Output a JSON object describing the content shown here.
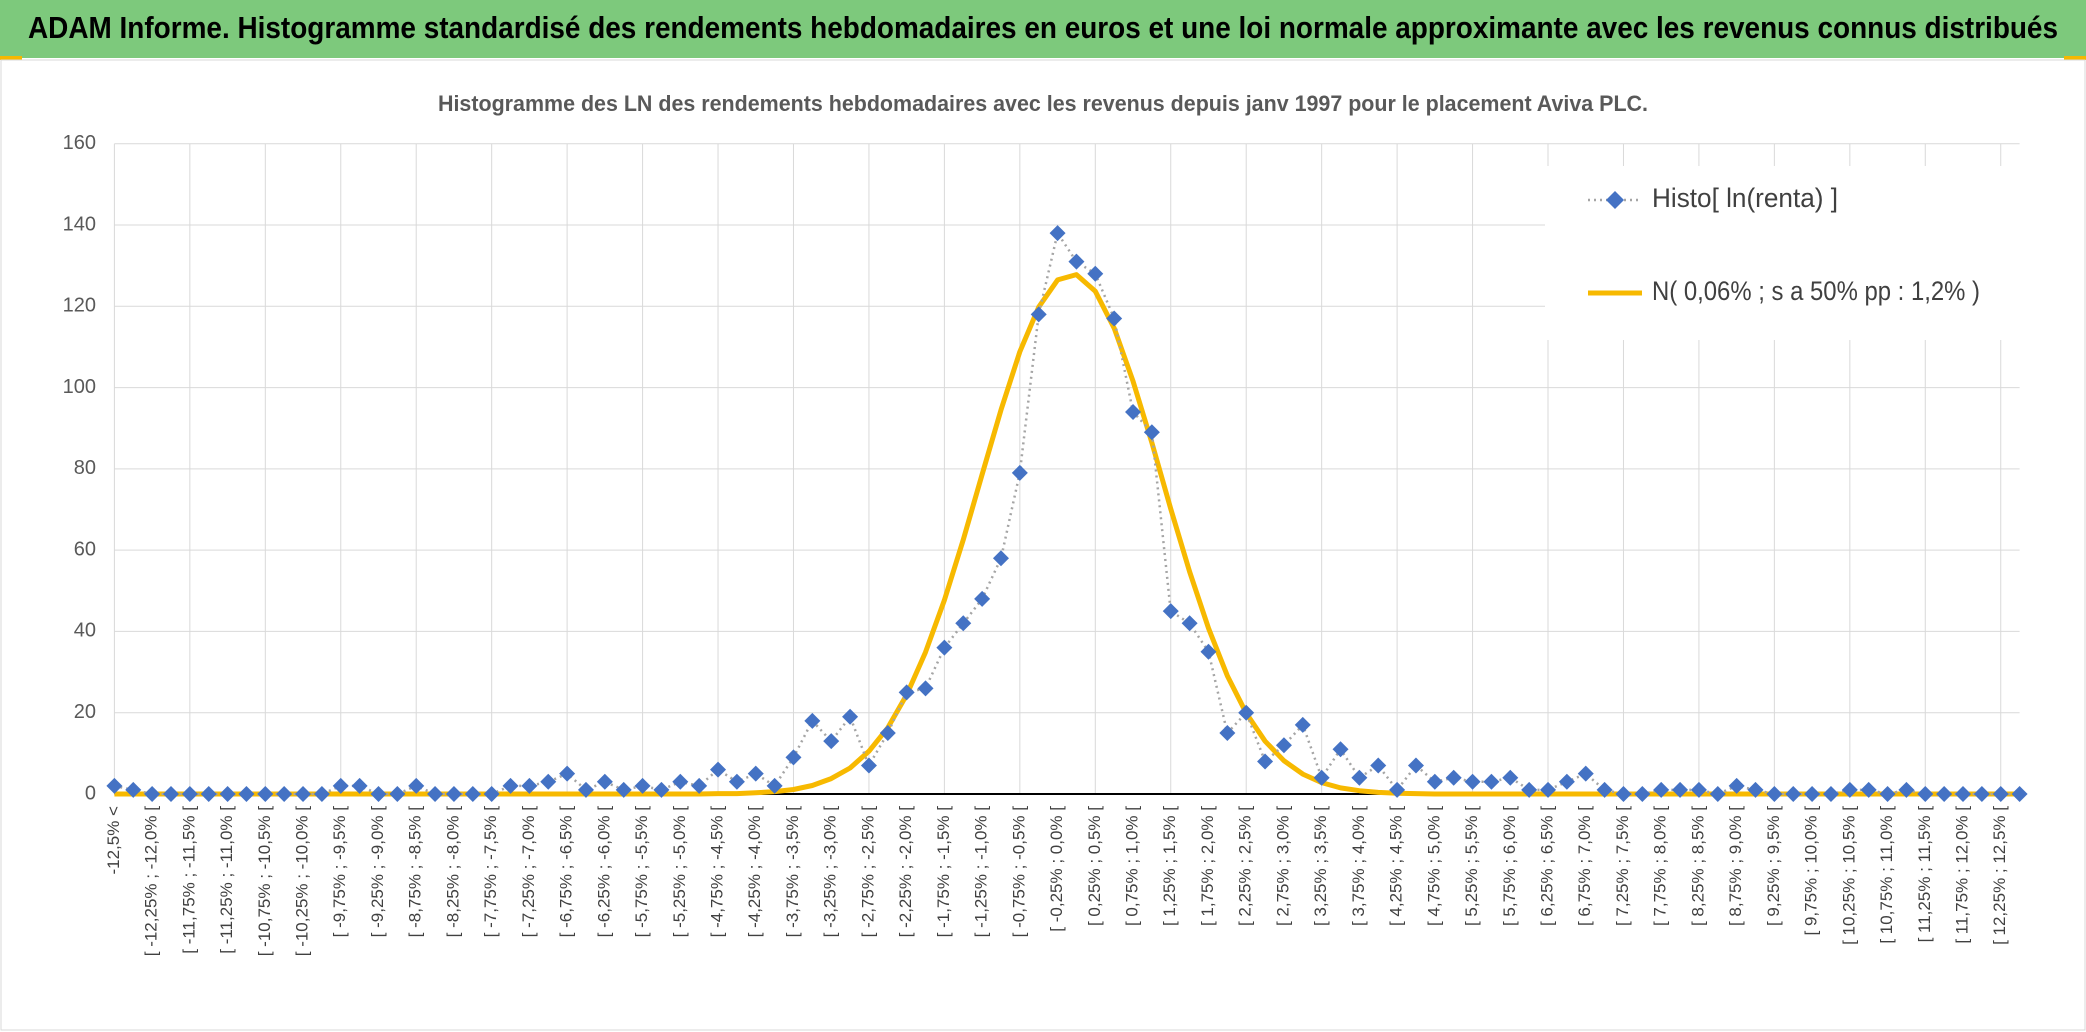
{
  "header": {
    "title": "ADAM Informe. Histogramme standardisé des rendements hebdomadaires en euros et une loi normale approximante avec les revenus connus distribués"
  },
  "chart_data": {
    "type": "line",
    "title": "Histogramme des LN des rendements hebdomadaires avec les revenus depuis janv 1997 pour le placement Aviva PLC.",
    "categories": [
      "-12,5% <",
      null,
      "[ -12,25% ; -12,0% [",
      null,
      "[ -11,75% ; -11,5% [",
      null,
      "[ -11,25% ; -11,0% [",
      null,
      "[ -10,75% ; -10,5% [",
      null,
      "[ -10,25% ; -10,0% [",
      null,
      "[ -9,75% ; -9,5% [",
      null,
      "[ -9,25% ; -9,0% [",
      null,
      "[ -8,75% ; -8,5% [",
      null,
      "[ -8,25% ; -8,0% [",
      null,
      "[ -7,75% ; -7,5% [",
      null,
      "[ -7,25% ; -7,0% [",
      null,
      "[ -6,75% ; -6,5% [",
      null,
      "[ -6,25% ; -6,0% [",
      null,
      "[ -5,75% ; -5,5% [",
      null,
      "[ -5,25% ; -5,0% [",
      null,
      "[ -4,75% ; -4,5% [",
      null,
      "[ -4,25% ; -4,0% [",
      null,
      "[ -3,75% ; -3,5% [",
      null,
      "[ -3,25% ; -3,0% [",
      null,
      "[ -2,75% ; -2,5% [",
      null,
      "[ -2,25% ; -2,0% [",
      null,
      "[ -1,75% ; -1,5% [",
      null,
      "[ -1,25% ; -1,0% [",
      null,
      "[ -0,75% ; -0,5% [",
      null,
      "[ -0,25% ; 0,0% [",
      null,
      "[ 0,25% ; 0,5% [",
      null,
      "[ 0,75% ; 1,0% [",
      null,
      "[ 1,25% ; 1,5% [",
      null,
      "[ 1,75% ; 2,0% [",
      null,
      "[ 2,25% ; 2,5% [",
      null,
      "[ 2,75% ; 3,0% [",
      null,
      "[ 3,25% ; 3,5% [",
      null,
      "[ 3,75% ; 4,0% [",
      null,
      "[ 4,25% ; 4,5% [",
      null,
      "[ 4,75% ; 5,0% [",
      null,
      "[ 5,25% ; 5,5% [",
      null,
      "[ 5,75% ; 6,0% [",
      null,
      "[ 6,25% ; 6,5% [",
      null,
      "[ 6,75% ; 7,0% [",
      null,
      "[ 7,25% ; 7,5% [",
      null,
      "[ 7,75% ; 8,0% [",
      null,
      "[ 8,25% ; 8,5% [",
      null,
      "[ 8,75% ; 9,0% [",
      null,
      "[ 9,25% ; 9,5% [",
      null,
      "[ 9,75% ; 10,0% [",
      null,
      "[ 10,25% ; 10,5% [",
      null,
      "[ 10,75% ; 11,0% [",
      null,
      "[ 11,25% ; 11,5% [",
      null,
      "[ 11,75% ; 12,0% [",
      null,
      "[ 12,25% ; 12,5% [",
      null
    ],
    "series": [
      {
        "name": "Histo[ ln(renta) ]",
        "color": "#4472c4",
        "line_color": "#a5a5a5",
        "values": [
          2,
          1,
          0,
          0,
          0,
          0,
          0,
          0,
          0,
          0,
          0,
          0,
          2,
          2,
          0,
          0,
          2,
          0,
          0,
          0,
          0,
          2,
          2,
          3,
          5,
          1,
          3,
          1,
          2,
          1,
          3,
          2,
          6,
          3,
          5,
          2,
          9,
          18,
          13,
          19,
          7,
          15,
          25,
          26,
          36,
          42,
          48,
          58,
          79,
          118,
          138,
          131,
          128,
          117,
          94,
          89,
          45,
          42,
          35,
          15,
          20,
          8,
          12,
          17,
          4,
          11,
          4,
          7,
          1,
          7,
          3,
          4,
          3,
          3,
          4,
          1,
          1,
          3,
          5,
          1,
          0,
          0,
          1,
          1,
          1,
          0,
          2,
          1,
          0,
          0,
          0,
          0,
          1,
          1,
          0,
          1,
          0,
          0,
          0,
          0,
          0,
          0
        ]
      },
      {
        "name": "N( 0,06% ; s a 50% pp : 1,2% )",
        "color": "#f7b900",
        "values": [
          0,
          0,
          0,
          0,
          0,
          0,
          0,
          0,
          0,
          0,
          0,
          0,
          0,
          0,
          0,
          0,
          0,
          0,
          0,
          0,
          0,
          0,
          0,
          0,
          0,
          0,
          0,
          0,
          0,
          0,
          0,
          0,
          0.1,
          0.1,
          0.3,
          0.6,
          1.1,
          2.1,
          3.8,
          6.4,
          10.5,
          16.3,
          24.4,
          34.9,
          47.7,
          62.6,
          78.6,
          94.5,
          108.8,
          119.8,
          126.5,
          127.8,
          123.7,
          114.6,
          101.6,
          86.4,
          70.2,
          54.7,
          40.8,
          29.1,
          19.9,
          13.0,
          8.2,
          4.9,
          2.8,
          1.5,
          0.8,
          0.4,
          0.2,
          0.1,
          0,
          0,
          0,
          0,
          0,
          0,
          0,
          0,
          0,
          0,
          0,
          0,
          0,
          0,
          0,
          0,
          0,
          0,
          0,
          0,
          0,
          0,
          0,
          0,
          0,
          0,
          0,
          0,
          0,
          0,
          0,
          0
        ]
      }
    ],
    "ylim": [
      0,
      160
    ],
    "yticks": [
      0,
      20,
      40,
      60,
      80,
      100,
      120,
      140,
      160
    ],
    "grid": true,
    "legend": "top-right"
  }
}
